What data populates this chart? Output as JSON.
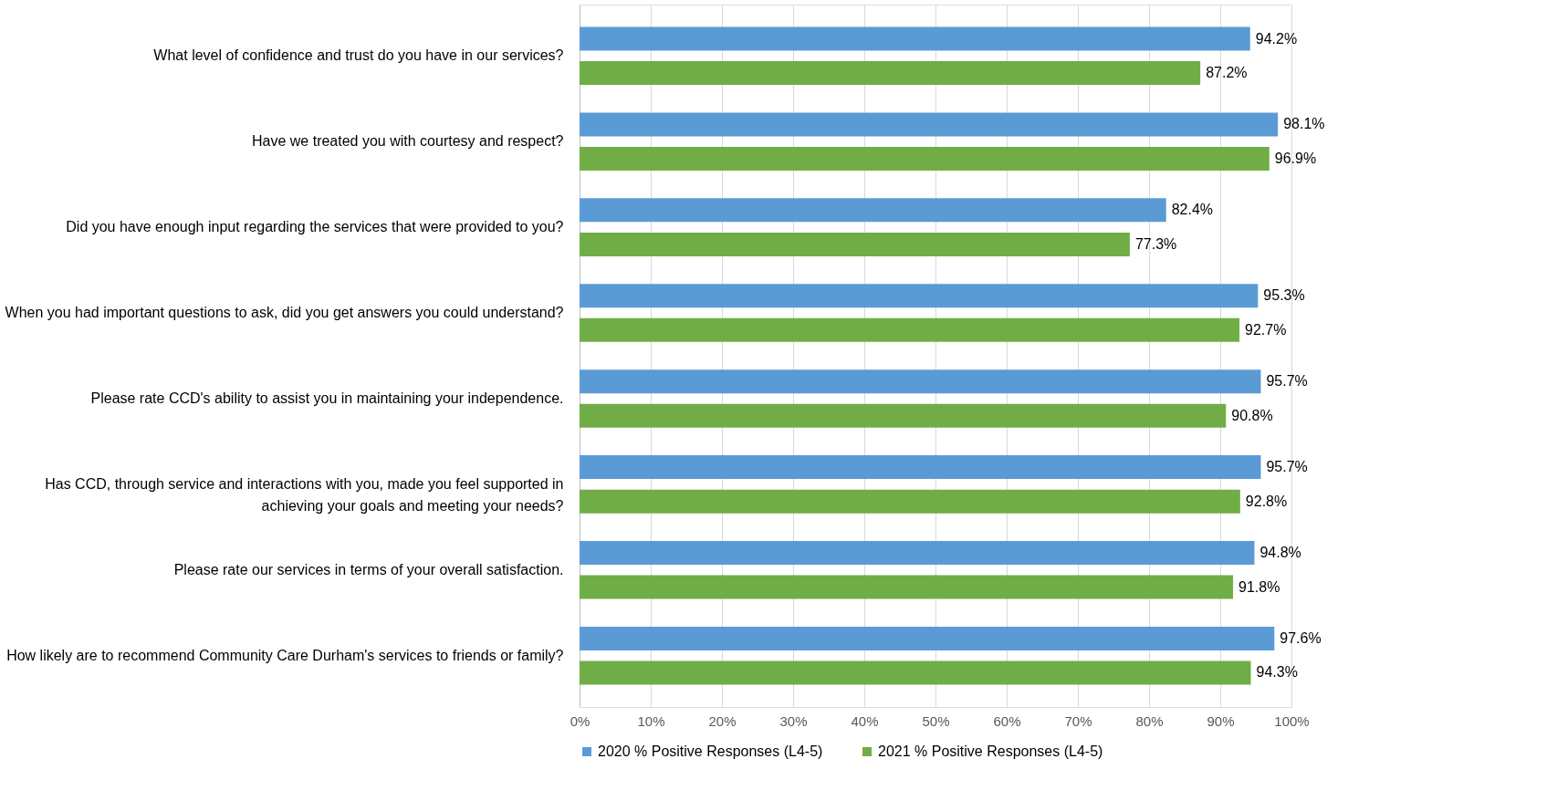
{
  "chart_data": {
    "type": "bar",
    "orientation": "horizontal",
    "categories": [
      "What level of confidence and trust do you have in our services?",
      "Have we treated you with courtesy and respect?",
      "Did you have enough input regarding the services that were provided to you?",
      "When you had important questions to ask, did you get answers you could understand?",
      "Please rate CCD's ability to assist you in maintaining your independence.",
      "Has CCD, through service and interactions with you, made you feel supported in achieving your goals and meeting your needs?",
      "Please rate our services in terms of your overall satisfaction.",
      "How likely are to recommend Community Care Durham's services to friends or family?"
    ],
    "series": [
      {
        "name": "2020 % Positive Responses (L4-5)",
        "color": "#5b9bd5",
        "values": [
          94.2,
          98.1,
          82.4,
          95.3,
          95.7,
          95.7,
          94.8,
          97.6
        ],
        "value_labels": [
          "94.2%",
          "98.1%",
          "82.4%",
          "95.3%",
          "95.7%",
          "95.7%",
          "94.8%",
          "97.6%"
        ]
      },
      {
        "name": "2021 % Positive Responses (L4-5)",
        "color": "#70ad47",
        "values": [
          87.2,
          96.9,
          77.3,
          92.7,
          90.8,
          92.8,
          91.8,
          94.3
        ],
        "value_labels": [
          "87.2%",
          "96.9%",
          "77.3%",
          "92.7%",
          "90.8%",
          "92.8%",
          "91.8%",
          "94.3%"
        ]
      }
    ],
    "xlim": [
      0,
      100
    ],
    "xticks": [
      {
        "value": 0,
        "label": "0%"
      },
      {
        "value": 10,
        "label": "10%"
      },
      {
        "value": 20,
        "label": "20%"
      },
      {
        "value": 30,
        "label": "30%"
      },
      {
        "value": 40,
        "label": "40%"
      },
      {
        "value": 50,
        "label": "50%"
      },
      {
        "value": 60,
        "label": "60%"
      },
      {
        "value": 70,
        "label": "70%"
      },
      {
        "value": 80,
        "label": "80%"
      },
      {
        "value": 90,
        "label": "90%"
      },
      {
        "value": 100,
        "label": "100%"
      }
    ],
    "grid": "x",
    "legend": "bottom"
  }
}
